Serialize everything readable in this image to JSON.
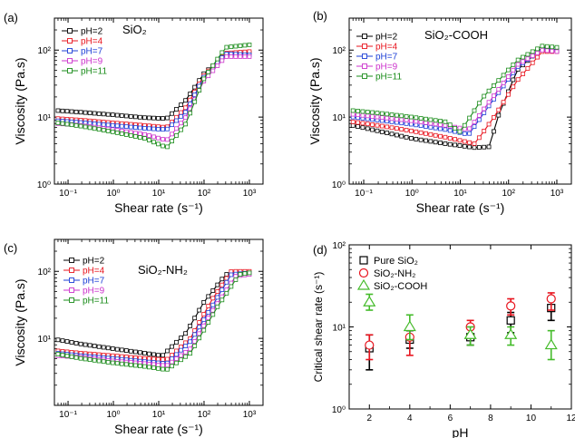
{
  "colors": {
    "pH=2": "#000000",
    "pH=4": "#e8141e",
    "pH=7": "#1d3fd6",
    "pH=9": "#cc33cc",
    "pH=11": "#1a8c1a",
    "Pure SiO2": "#000000",
    "SiO2-NH2": "#e8141e",
    "SiO2-COOH": "#44bb2a"
  },
  "chart_data": [
    {
      "type": "line",
      "panel_label": "(a)",
      "title": "SiO₂",
      "xlabel": "Shear rate (s⁻¹)",
      "ylabel": "Viscosity (Pa.s)",
      "xscale": "log",
      "yscale": "log",
      "xlim": [
        0.05,
        2000
      ],
      "ylim": [
        1,
        300
      ],
      "xticks": [
        "10⁻¹",
        "10⁰",
        "10¹",
        "10²",
        "10³"
      ],
      "yticks": [
        "10⁰",
        "10¹",
        "10²"
      ],
      "legend": "top-left",
      "series": [
        {
          "name": "pH=2",
          "points": [
            [
              0.06,
              12.5
            ],
            [
              0.2,
              11.8
            ],
            [
              1,
              10.8
            ],
            [
              5,
              9.8
            ],
            [
              15,
              9.5
            ],
            [
              40,
              18
            ],
            [
              100,
              45
            ],
            [
              300,
              85
            ],
            [
              1000,
              90
            ]
          ]
        },
        {
          "name": "pH=4",
          "points": [
            [
              0.06,
              9.5
            ],
            [
              0.2,
              9.0
            ],
            [
              1,
              8.2
            ],
            [
              5,
              7.5
            ],
            [
              15,
              7.0
            ],
            [
              40,
              14
            ],
            [
              100,
              42
            ],
            [
              300,
              90
            ],
            [
              1000,
              95
            ]
          ]
        },
        {
          "name": "pH=7",
          "points": [
            [
              0.06,
              8.8
            ],
            [
              0.2,
              8.3
            ],
            [
              1,
              7.5
            ],
            [
              5,
              6.8
            ],
            [
              15,
              6.5
            ],
            [
              40,
              12
            ],
            [
              100,
              40
            ],
            [
              300,
              88
            ],
            [
              1000,
              85
            ]
          ]
        },
        {
          "name": "pH=9",
          "points": [
            [
              0.06,
              8.0
            ],
            [
              0.2,
              7.5
            ],
            [
              1,
              6.5
            ],
            [
              5,
              5.5
            ],
            [
              15,
              4.5
            ],
            [
              40,
              10
            ],
            [
              100,
              35
            ],
            [
              300,
              80
            ],
            [
              1000,
              80
            ]
          ]
        },
        {
          "name": "pH=11",
          "points": [
            [
              0.06,
              8.2
            ],
            [
              0.2,
              7.3
            ],
            [
              1,
              6.0
            ],
            [
              5,
              4.8
            ],
            [
              15,
              3.5
            ],
            [
              40,
              8
            ],
            [
              100,
              38
            ],
            [
              300,
              110
            ],
            [
              1000,
              120
            ]
          ]
        }
      ]
    },
    {
      "type": "line",
      "panel_label": "(b)",
      "title": "SiO₂-COOH",
      "xlabel": "Shear rate (s⁻¹)",
      "ylabel": "Viscosity (Pa.s)",
      "xscale": "log",
      "yscale": "log",
      "xlim": [
        0.05,
        2000
      ],
      "ylim": [
        1,
        300
      ],
      "xticks": [
        "10⁻¹",
        "10⁰",
        "10¹",
        "10²",
        "10³"
      ],
      "yticks": [
        "10⁰",
        "10¹",
        "10²"
      ],
      "legend": "top-left",
      "series": [
        {
          "name": "pH=2",
          "points": [
            [
              0.06,
              7.5
            ],
            [
              0.2,
              6.2
            ],
            [
              1,
              4.8
            ],
            [
              5,
              4.0
            ],
            [
              20,
              3.5
            ],
            [
              40,
              3.6
            ],
            [
              60,
              10
            ],
            [
              150,
              50
            ],
            [
              500,
              110
            ],
            [
              1000,
              100
            ]
          ]
        },
        {
          "name": "pH=4",
          "points": [
            [
              0.06,
              8.5
            ],
            [
              0.2,
              7.5
            ],
            [
              1,
              6.2
            ],
            [
              5,
              5.0
            ],
            [
              20,
              4.0
            ],
            [
              50,
              10
            ],
            [
              150,
              35
            ],
            [
              500,
              95
            ],
            [
              1000,
              95
            ]
          ]
        },
        {
          "name": "pH=7",
          "points": [
            [
              0.06,
              10
            ],
            [
              0.2,
              9.0
            ],
            [
              1,
              7.8
            ],
            [
              5,
              6.5
            ],
            [
              15,
              5.5
            ],
            [
              40,
              15
            ],
            [
              150,
              55
            ],
            [
              500,
              105
            ],
            [
              1000,
              100
            ]
          ]
        },
        {
          "name": "pH=9",
          "points": [
            [
              0.06,
              11
            ],
            [
              0.2,
              10
            ],
            [
              1,
              8.8
            ],
            [
              5,
              7.5
            ],
            [
              15,
              6.5
            ],
            [
              40,
              17
            ],
            [
              150,
              60
            ],
            [
              500,
              100
            ],
            [
              1000,
              95
            ]
          ]
        },
        {
          "name": "pH=11",
          "points": [
            [
              0.06,
              12.5
            ],
            [
              0.2,
              11.5
            ],
            [
              1,
              10
            ],
            [
              5,
              8.5
            ],
            [
              10,
              6.0
            ],
            [
              30,
              20
            ],
            [
              150,
              70
            ],
            [
              500,
              115
            ],
            [
              1000,
              110
            ]
          ]
        }
      ]
    },
    {
      "type": "line",
      "panel_label": "(c)",
      "title": "SiO₂-NH₂",
      "xlabel": "Shear rate (s⁻¹)",
      "ylabel": "Viscosity (Pa.s)",
      "xscale": "log",
      "yscale": "log",
      "xlim": [
        0.05,
        2000
      ],
      "ylim": [
        1,
        300
      ],
      "xticks": [
        "10⁻¹",
        "10⁰",
        "10¹",
        "10²",
        "10³"
      ],
      "yticks": [
        "10¹",
        "10²"
      ],
      "legend": "top-left",
      "series": [
        {
          "name": "pH=2",
          "points": [
            [
              0.06,
              9.5
            ],
            [
              0.2,
              8.2
            ],
            [
              1,
              7.0
            ],
            [
              5,
              6.0
            ],
            [
              12,
              5.5
            ],
            [
              40,
              12
            ],
            [
              100,
              35
            ],
            [
              300,
              90
            ],
            [
              1000,
              95
            ]
          ]
        },
        {
          "name": "pH=4",
          "points": [
            [
              0.06,
              6.5
            ],
            [
              0.2,
              6.0
            ],
            [
              1,
              5.5
            ],
            [
              5,
              5.0
            ],
            [
              15,
              4.8
            ],
            [
              50,
              10
            ],
            [
              150,
              38
            ],
            [
              400,
              100
            ],
            [
              1000,
              100
            ]
          ]
        },
        {
          "name": "pH=7",
          "points": [
            [
              0.06,
              6.0
            ],
            [
              0.2,
              5.5
            ],
            [
              1,
              5.0
            ],
            [
              5,
              4.5
            ],
            [
              15,
              4.2
            ],
            [
              50,
              9
            ],
            [
              150,
              30
            ],
            [
              400,
              90
            ],
            [
              1000,
              95
            ]
          ]
        },
        {
          "name": "pH=9",
          "points": [
            [
              0.06,
              5.5
            ],
            [
              0.2,
              5.2
            ],
            [
              1,
              4.6
            ],
            [
              5,
              4.2
            ],
            [
              15,
              3.9
            ],
            [
              50,
              7
            ],
            [
              150,
              25
            ],
            [
              500,
              85
            ],
            [
              1000,
              90
            ]
          ]
        },
        {
          "name": "pH=11",
          "points": [
            [
              0.06,
              5.8
            ],
            [
              0.2,
              5.0
            ],
            [
              1,
              4.3
            ],
            [
              5,
              3.8
            ],
            [
              15,
              3.4
            ],
            [
              50,
              6
            ],
            [
              200,
              30
            ],
            [
              600,
              90
            ],
            [
              1000,
              95
            ]
          ]
        }
      ]
    },
    {
      "type": "scatter",
      "panel_label": "(d)",
      "title": "",
      "xlabel": "pH",
      "ylabel": "Critical shear rate (s⁻¹)",
      "xscale": "linear",
      "yscale": "log",
      "xlim": [
        1,
        12
      ],
      "ylim": [
        1,
        100
      ],
      "xticks": [
        "2",
        "4",
        "6",
        "8",
        "10",
        "12"
      ],
      "yticks": [
        "10⁰",
        "10¹",
        "10²"
      ],
      "legend": "top-left",
      "series": [
        {
          "name": "Pure SiO₂",
          "marker": "square",
          "points": [
            [
              2,
              5.5,
              3.0,
              8.0
            ],
            [
              4,
              7.0,
              5.5,
              9.0
            ],
            [
              7,
              7.5,
              6.0,
              9.5
            ],
            [
              9,
              12,
              8.5,
              15
            ],
            [
              11,
              17,
              12,
              21
            ]
          ]
        },
        {
          "name": "SiO₂-NH₂",
          "marker": "circle",
          "points": [
            [
              2,
              6.0,
              4.0,
              8.0
            ],
            [
              4,
              7.5,
              4.5,
              10
            ],
            [
              7,
              10,
              8.0,
              12
            ],
            [
              9,
              18,
              14,
              22
            ],
            [
              11,
              22,
              16,
              26
            ]
          ]
        },
        {
          "name": "SiO₂-COOH",
          "marker": "triangle",
          "points": [
            [
              2,
              20,
              16,
              25
            ],
            [
              4,
              10,
              7.0,
              14
            ],
            [
              7,
              8.0,
              6.0,
              10
            ],
            [
              9,
              8.0,
              6.0,
              10
            ],
            [
              11,
              6.0,
              4.0,
              9.0
            ]
          ]
        }
      ]
    }
  ]
}
